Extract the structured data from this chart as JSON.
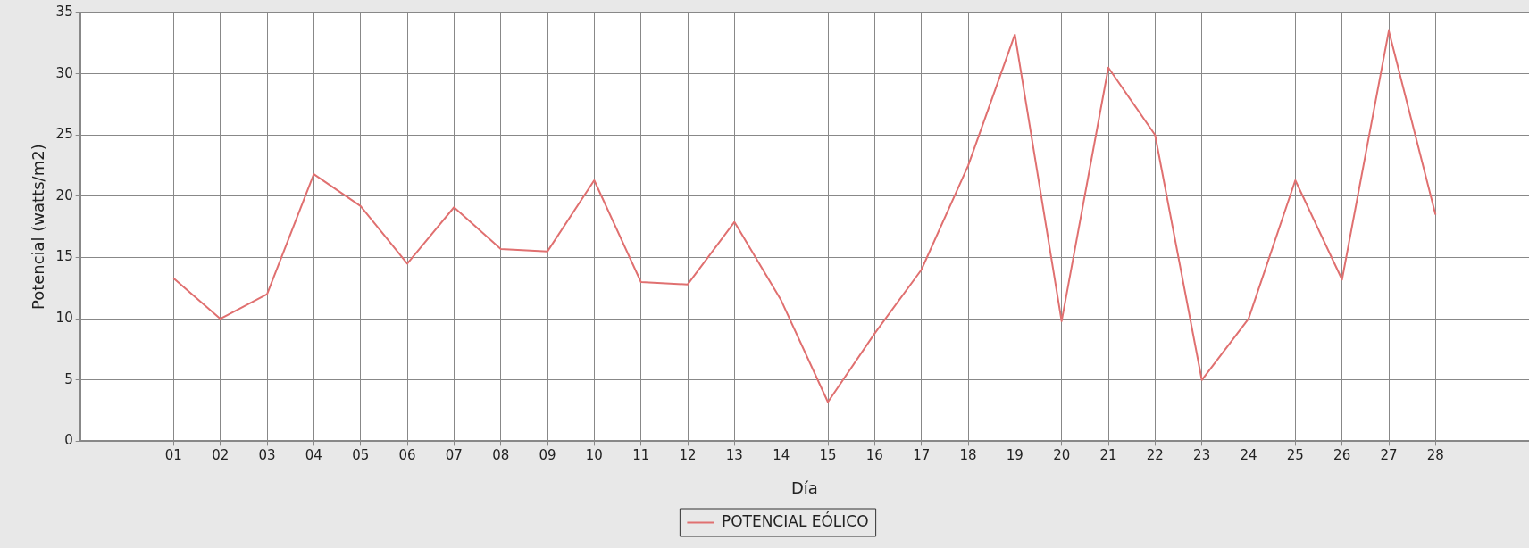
{
  "chart_data": {
    "type": "line",
    "xlabel": "Día",
    "ylabel": "Potencial (watts/m2)",
    "categories": [
      "01",
      "02",
      "03",
      "04",
      "05",
      "06",
      "07",
      "08",
      "09",
      "10",
      "11",
      "12",
      "13",
      "14",
      "15",
      "16",
      "17",
      "18",
      "19",
      "20",
      "21",
      "22",
      "23",
      "24",
      "25",
      "26",
      "27",
      "28"
    ],
    "series": [
      {
        "name": "POTENCIAL EÓLICO",
        "color": "#e07070",
        "values": [
          13.3,
          10,
          12,
          21.8,
          19.2,
          14.5,
          19.1,
          15.7,
          15.5,
          21.3,
          13,
          12.8,
          17.9,
          11.5,
          3.2,
          8.8,
          14,
          22.5,
          33.2,
          9.8,
          30.5,
          25,
          5,
          10,
          21.3,
          13.2,
          33.5,
          18.5
        ]
      }
    ],
    "ylim": [
      0,
      35
    ],
    "yticks": [
      0,
      5,
      10,
      15,
      20,
      25,
      30,
      35
    ],
    "grid": true,
    "legend": "bottom",
    "marker": "none",
    "line_style": "solid"
  }
}
